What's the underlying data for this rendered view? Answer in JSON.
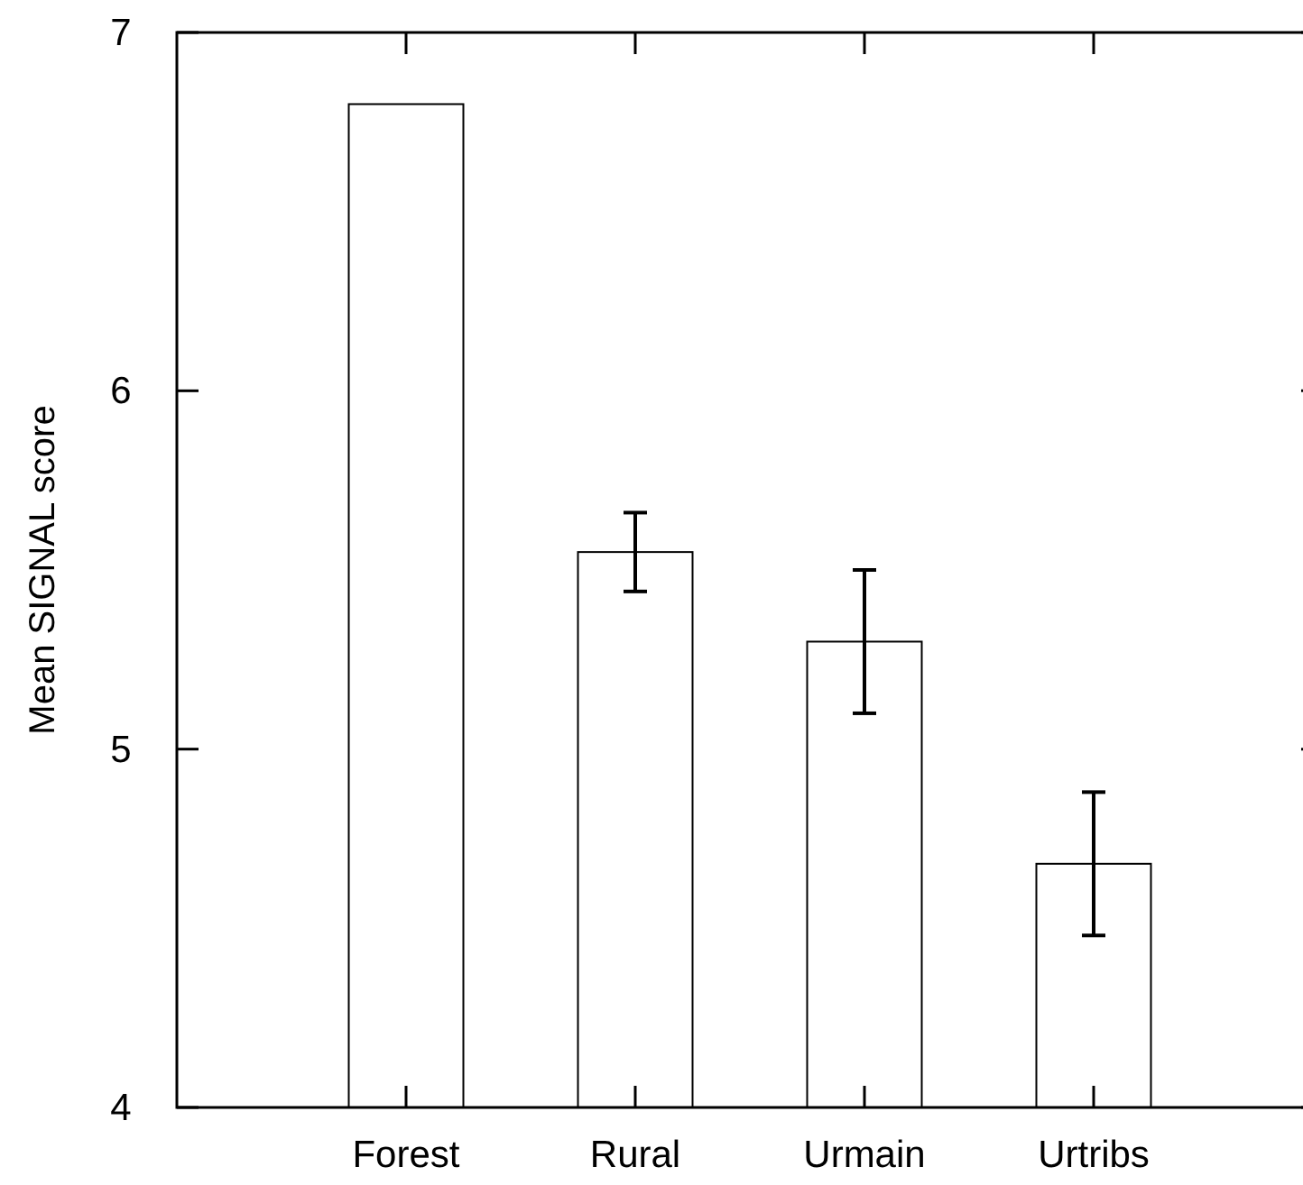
{
  "chart_data": {
    "type": "bar",
    "ylabel": "Mean SIGNAL score",
    "categories": [
      "Forest",
      "Rural",
      "Urmain",
      "Urtribs"
    ],
    "values": [
      6.8,
      5.55,
      5.3,
      4.68
    ],
    "errors": [
      null,
      0.11,
      0.2,
      0.2
    ],
    "color": "#ffffff",
    "ylim": [
      4,
      7
    ],
    "yticks": [
      4,
      5,
      6,
      7
    ],
    "grid": false
  }
}
